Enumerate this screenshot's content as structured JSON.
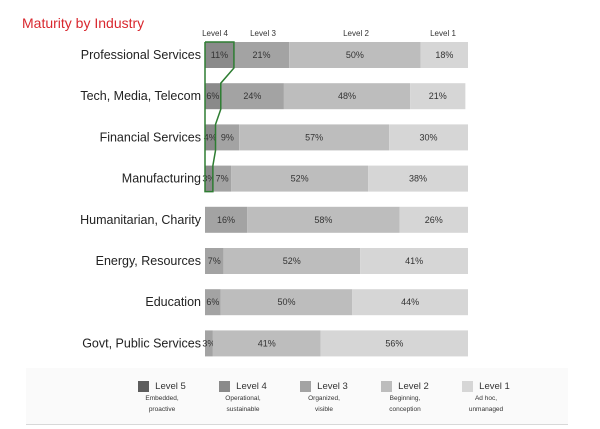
{
  "chart_data": {
    "type": "bar",
    "orientation": "horizontal",
    "stacked": true,
    "title": "Maturity by Industry",
    "categories": [
      "Professional Services",
      "Tech, Media, Telecom",
      "Financial Services",
      "Manufacturing",
      "Humanitarian, Charity",
      "Energy, Resources",
      "Education",
      "Govt, Public Services"
    ],
    "series": [
      {
        "name": "Level 5",
        "color": "#5d5d5d",
        "values": [
          0,
          0,
          0,
          0,
          0,
          0,
          0,
          0
        ],
        "labels": [
          "",
          "",
          "",
          "",
          "",
          "",
          "",
          ""
        ]
      },
      {
        "name": "Level 4",
        "color": "#8a8a8a",
        "values": [
          11,
          6,
          4,
          3,
          0,
          0,
          0,
          0
        ],
        "labels": [
          "11%",
          "6%",
          "4%",
          "3%",
          "",
          "",
          "",
          ""
        ]
      },
      {
        "name": "Level 3",
        "color": "#a3a3a3",
        "values": [
          21,
          24,
          9,
          7,
          16,
          7,
          6,
          3
        ],
        "labels": [
          "21%",
          "24%",
          "9%",
          "7%",
          "16%",
          "7%",
          "6%",
          "3%"
        ]
      },
      {
        "name": "Level 2",
        "color": "#bdbdbd",
        "values": [
          50,
          48,
          57,
          52,
          58,
          52,
          50,
          41
        ],
        "labels": [
          "50%",
          "48%",
          "57%",
          "52%",
          "58%",
          "52%",
          "50%",
          "41%"
        ]
      },
      {
        "name": "Level 1",
        "color": "#d6d6d6",
        "values": [
          18,
          21,
          30,
          38,
          26,
          41,
          44,
          56
        ],
        "labels": [
          "18%",
          "21%",
          "30%",
          "38%",
          "26%",
          "41%",
          "44%",
          "56%"
        ]
      }
    ],
    "column_headers": [
      "Level 4",
      "Level 3",
      "Level 2",
      "Level 1"
    ],
    "xlim": [
      0,
      100
    ],
    "grid": false,
    "legend_position": "bottom",
    "highlight": {
      "series": "Level 4",
      "color": "#2e7d32"
    }
  },
  "legend": [
    {
      "name": "Level 5",
      "desc1": "Embedded,",
      "desc2": "proactive",
      "color": "#5d5d5d"
    },
    {
      "name": "Level 4",
      "desc1": "Operational,",
      "desc2": "sustainable",
      "color": "#8a8a8a"
    },
    {
      "name": "Level 3",
      "desc1": "Organized,",
      "desc2": "visible",
      "color": "#a3a3a3"
    },
    {
      "name": "Level 2",
      "desc1": "Beginning,",
      "desc2": "conception",
      "color": "#bdbdbd"
    },
    {
      "name": "Level 1",
      "desc1": "Ad hoc,",
      "desc2": "unmanaged",
      "color": "#d6d6d6"
    }
  ]
}
